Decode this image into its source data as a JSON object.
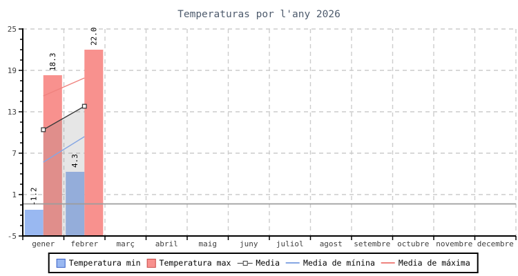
{
  "title": "Temperaturas por l'any 2026",
  "chart_data": {
    "type": "bar",
    "title": "Temperaturas por l'any 2026",
    "categories": [
      "gener",
      "febrer",
      "març",
      "abril",
      "maig",
      "juny",
      "juliol",
      "agost",
      "setembre",
      "octubre",
      "novembre",
      "decembre"
    ],
    "y_axis": {
      "min": -5,
      "max": 25,
      "major_step": 6,
      "minor_step": 1.5,
      "tick_labels": [
        "25",
        "19",
        "13",
        "7",
        "1",
        "-5"
      ],
      "grid": true
    },
    "x_axis": {
      "grid": true
    },
    "series": [
      {
        "name": "Temperatura min",
        "type": "bar",
        "color": "#99b8f1",
        "border_color": "#3d63c9",
        "values": [
          -1.2,
          4.3,
          null,
          null,
          null,
          null,
          null,
          null,
          null,
          null,
          null,
          null
        ],
        "value_labels": [
          "-1.2",
          "4.3"
        ]
      },
      {
        "name": "Temperatura max",
        "type": "bar",
        "color": "#f8918e",
        "border_color": "#c9504d",
        "values": [
          18.3,
          22.0,
          null,
          null,
          null,
          null,
          null,
          null,
          null,
          null,
          null,
          null
        ],
        "value_labels": [
          "18.3",
          "22.0"
        ]
      },
      {
        "name": "Media",
        "type": "line",
        "color": "#3b3b3b",
        "marker": "open-square",
        "values": [
          10.4,
          13.8,
          null,
          null,
          null,
          null,
          null,
          null,
          null,
          null,
          null,
          null
        ]
      },
      {
        "name": "Media de mínina",
        "type": "line",
        "color": "#85a6e3",
        "marker": "none",
        "values": [
          5.7,
          9.4,
          null,
          null,
          null,
          null,
          null,
          null,
          null,
          null,
          null,
          null
        ]
      },
      {
        "name": "Media de máxima",
        "type": "line",
        "color": "#ef827e",
        "marker": "none",
        "values": [
          15.3,
          17.9,
          null,
          null,
          null,
          null,
          null,
          null,
          null,
          null,
          null,
          null
        ]
      }
    ],
    "area_fill": {
      "under_series": "Media",
      "color": "rgba(130,130,130,0.20)"
    },
    "reference_line": {
      "value": -0.35,
      "color": "#9c9c9c"
    },
    "grid_color": "#cccccc",
    "axis_color": "#000000",
    "tick_text_color": "#3d3d3d",
    "title_color": "#4e5b6d",
    "legend_position": "bottom-center"
  }
}
